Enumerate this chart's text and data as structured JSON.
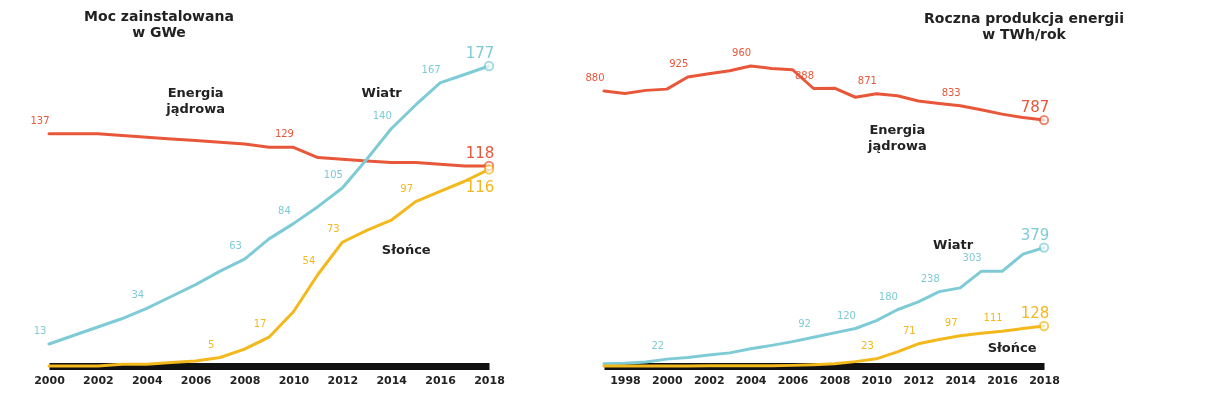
{
  "chart_data": [
    {
      "type": "line",
      "title": "Moc zainstalowana\nw GWe",
      "x": [
        2000,
        2001,
        2002,
        2003,
        2004,
        2005,
        2006,
        2007,
        2008,
        2009,
        2010,
        2011,
        2012,
        2013,
        2014,
        2015,
        2016,
        2017,
        2018
      ],
      "xlim": [
        2000,
        2018
      ],
      "xticks": [
        2000,
        2002,
        2004,
        2006,
        2008,
        2010,
        2012,
        2014,
        2016,
        2018
      ],
      "tick_labels": "x",
      "grid": false,
      "legend": false,
      "line_style": "solid",
      "series": [
        {
          "name": "Energia jądrowa",
          "color": "#e8573a",
          "values": [
            137,
            137,
            137,
            136,
            135,
            134,
            133,
            132,
            131,
            129,
            129,
            123,
            122,
            121,
            120,
            120,
            119,
            118,
            118
          ],
          "value_labels": [
            "137",
            null,
            null,
            null,
            null,
            null,
            null,
            null,
            null,
            null,
            "129",
            null,
            null,
            null,
            null,
            null,
            null,
            null,
            "118"
          ]
        },
        {
          "name": "Wiatr",
          "color": "#7ecbd6",
          "values": [
            13,
            18,
            23,
            28,
            34,
            41,
            48,
            56,
            63,
            75,
            84,
            94,
            105,
            122,
            140,
            154,
            167,
            172,
            177
          ],
          "value_labels": [
            "13",
            null,
            null,
            null,
            "34",
            null,
            null,
            null,
            "63",
            null,
            "84",
            null,
            "105",
            null,
            "140",
            null,
            "167",
            null,
            "177"
          ]
        },
        {
          "name": "Słońce",
          "color": "#f2b81c",
          "values": [
            0,
            0,
            0,
            1,
            1,
            2,
            3,
            5,
            10,
            17,
            32,
            54,
            73,
            80,
            86,
            97,
            103,
            109,
            116
          ],
          "value_labels": [
            null,
            null,
            null,
            null,
            null,
            null,
            null,
            "5",
            null,
            "17",
            null,
            "54",
            "73",
            null,
            null,
            "97",
            null,
            null,
            "116"
          ]
        }
      ]
    },
    {
      "type": "line",
      "title": "Roczna produkcja energii\nw TWh/rok",
      "x": [
        1997,
        1998,
        1999,
        2000,
        2001,
        2002,
        2003,
        2004,
        2005,
        2006,
        2007,
        2008,
        2009,
        2010,
        2011,
        2012,
        2013,
        2014,
        2015,
        2016,
        2017,
        2018
      ],
      "xlim": [
        1997,
        2018
      ],
      "xticks": [
        1998,
        2000,
        2002,
        2004,
        2006,
        2008,
        2010,
        2012,
        2014,
        2016,
        2018
      ],
      "tick_labels": "x",
      "grid": false,
      "legend": false,
      "line_style": "solid",
      "series": [
        {
          "name": "Energia jądrowa",
          "color": "#e8573a",
          "values": [
            880,
            872,
            882,
            886,
            925,
            935,
            945,
            960,
            952,
            948,
            888,
            889,
            860,
            871,
            865,
            848,
            840,
            833,
            820,
            806,
            795,
            787
          ],
          "value_labels": [
            "880",
            null,
            null,
            null,
            "925",
            null,
            null,
            "960",
            null,
            null,
            "888",
            null,
            null,
            "871",
            null,
            null,
            null,
            "833",
            null,
            null,
            null,
            "787"
          ]
        },
        {
          "name": "Wiatr",
          "color": "#7ecbd6",
          "values": [
            7,
            9,
            13,
            22,
            27,
            35,
            42,
            55,
            66,
            78,
            92,
            106,
            120,
            145,
            180,
            205,
            238,
            250,
            303,
            303,
            358,
            379
          ],
          "value_labels": [
            null,
            null,
            null,
            "22",
            null,
            null,
            null,
            null,
            null,
            null,
            "92",
            null,
            "120",
            null,
            "180",
            null,
            "238",
            null,
            "303",
            null,
            null,
            "379"
          ]
        },
        {
          "name": "Słońce",
          "color": "#f2b81c",
          "values": [
            0,
            0,
            0,
            0,
            0,
            1,
            1,
            1,
            1,
            2,
            4,
            7,
            14,
            23,
            45,
            71,
            85,
            97,
            105,
            111,
            120,
            128
          ],
          "value_labels": [
            null,
            null,
            null,
            null,
            null,
            null,
            null,
            null,
            null,
            null,
            null,
            null,
            null,
            "23",
            null,
            "71",
            null,
            "97",
            null,
            "111",
            null,
            "128"
          ]
        }
      ]
    }
  ]
}
